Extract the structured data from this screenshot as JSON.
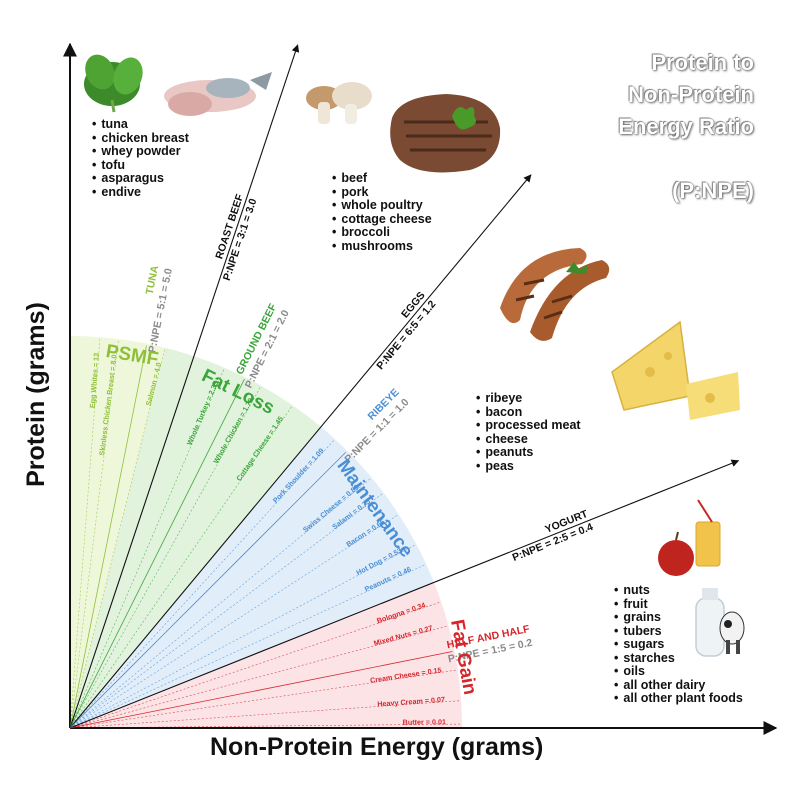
{
  "title": {
    "lines": [
      "Protein to",
      "Non-Protein",
      "Energy Ratio"
    ],
    "abbrev": "(P:NPE)"
  },
  "axes": {
    "x_label": "Non-Protein Energy (grams)",
    "y_label": "Protein (grams)"
  },
  "colors": {
    "psmf": "#8fbf3a",
    "fat_loss": "#3aa63a",
    "maintenance": "#4a8fd6",
    "fat_gain": "#d6262b",
    "ratio_gray": "#8a8a8a",
    "zone_psmf_fill": "#eef7d9",
    "zone_fatloss_fill": "#e2f3dd",
    "zone_maint_fill": "#e1edf9",
    "zone_fatgain_fill": "#fbe3e6"
  },
  "zones": [
    {
      "name": "PSMF",
      "color": "psmf"
    },
    {
      "name": "Fat Loss",
      "color": "fat_loss"
    },
    {
      "name": "Maintenance",
      "color": "maintenance"
    },
    {
      "name": "Fat Gain",
      "color": "fat_gain"
    }
  ],
  "ratio_lines": [
    {
      "food": "TUNA",
      "ratio": "P:NPE = 5:1 = 5.0",
      "value": 5.0,
      "food_color": "psmf",
      "ratio_color": "ratio_gray",
      "arrow": false
    },
    {
      "food": "ROAST BEEF",
      "ratio": "P:NPE = 3:1 = 3.0",
      "value": 3.0,
      "food_color": "black",
      "ratio_color": "black",
      "arrow": true
    },
    {
      "food": "GROUND BEEF",
      "ratio": "P:NPE = 2:1 = 2.0",
      "value": 2.0,
      "food_color": "fat_loss",
      "ratio_color": "ratio_gray",
      "arrow": false
    },
    {
      "food": "EGGS",
      "ratio": "P:NPE = 6:5 = 1.2",
      "value": 1.2,
      "food_color": "black",
      "ratio_color": "black",
      "arrow": true
    },
    {
      "food": "RIBEYE",
      "ratio": "P:NPE = 1:1 = 1.0",
      "value": 1.0,
      "food_color": "maintenance",
      "ratio_color": "ratio_gray",
      "arrow": false
    },
    {
      "food": "YOGURT",
      "ratio": "P:NPE = 2:5 = 0.4",
      "value": 0.4,
      "food_color": "black",
      "ratio_color": "black",
      "arrow": true
    },
    {
      "food": "HALF AND HALF",
      "ratio": "P:NPE = 1:5 = 0.2",
      "value": 0.2,
      "food_color": "fat_gain",
      "ratio_color": "ratio_gray",
      "arrow": false
    }
  ],
  "fan_items": [
    {
      "label": "Egg Whites = 13",
      "value": 13,
      "color": "psmf"
    },
    {
      "label": "Skinless Chicken Breast = 8.0",
      "value": 8.0,
      "color": "psmf"
    },
    {
      "label": "Salmon = 4.0",
      "value": 4.0,
      "color": "psmf"
    },
    {
      "label": "Whole Turkey = 2.33",
      "value": 2.33,
      "color": "fat_loss"
    },
    {
      "label": "Whole Chicken = 1.79",
      "value": 1.79,
      "color": "fat_loss"
    },
    {
      "label": "Cottage Cheese = 1.45",
      "value": 1.45,
      "color": "fat_loss"
    },
    {
      "label": "Pork Shoulder = 1.09",
      "value": 1.09,
      "color": "maintenance"
    },
    {
      "label": "Swiss Cheese = 0.83",
      "value": 0.83,
      "color": "maintenance"
    },
    {
      "label": "Salami = 0.75",
      "value": 0.75,
      "color": "maintenance"
    },
    {
      "label": "Bacon = 0.65",
      "value": 0.65,
      "color": "maintenance"
    },
    {
      "label": "Hot Dog = 0.53",
      "value": 0.53,
      "color": "maintenance"
    },
    {
      "label": "Peanuts = 0.46",
      "value": 0.46,
      "color": "maintenance"
    },
    {
      "label": "Bologna = 0.34",
      "value": 0.34,
      "color": "fat_gain"
    },
    {
      "label": "Mixed Nuts = 0.27",
      "value": 0.27,
      "color": "fat_gain"
    },
    {
      "label": "Cream Cheese = 0.15",
      "value": 0.15,
      "color": "fat_gain"
    },
    {
      "label": "Heavy Cream = 0.07",
      "value": 0.07,
      "color": "fat_gain"
    },
    {
      "label": "Butter = 0.01",
      "value": 0.01,
      "color": "fat_gain"
    }
  ],
  "food_groups": {
    "psmf": [
      "tuna",
      "chicken breast",
      "whey powder",
      "tofu",
      "asparagus",
      "endive"
    ],
    "fat_loss": [
      "beef",
      "pork",
      "whole poultry",
      "cottage cheese",
      "broccoli",
      "mushrooms"
    ],
    "maintenance": [
      "ribeye",
      "bacon",
      "processed meat",
      "cheese",
      "peanuts",
      "peas"
    ],
    "fat_gain": [
      "nuts",
      "fruit",
      "grains",
      "tubers",
      "sugars",
      "starches",
      "oils",
      "all other dairy",
      "all other plant foods"
    ]
  },
  "illustrations": [
    "spinach-image",
    "fish-image",
    "mushroom-image",
    "steak-image",
    "sausage-image",
    "cheese-image",
    "apple-juice-image",
    "milk-cow-image"
  ]
}
